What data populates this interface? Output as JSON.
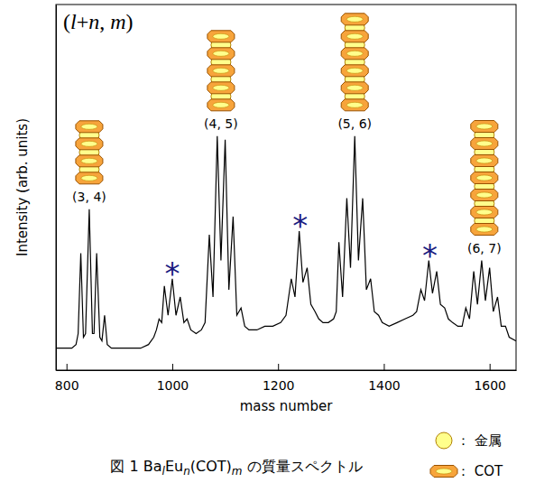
{
  "chart_data": {
    "type": "line",
    "x_label": "mass number",
    "y_label": "Intensity (arb. units)",
    "corner_label": "(l+n, m)",
    "caption": [
      "図 1 Ba",
      "l",
      "Eu",
      "n",
      "(COT)",
      "m",
      " の質量スペクトル"
    ],
    "color": "#000000",
    "xlim": [
      780,
      1650
    ],
    "xticks": [
      800,
      1000,
      1200,
      1400,
      1600
    ],
    "ylim": [
      0,
      100
    ],
    "tick_labels": "x",
    "x": [
      780,
      790,
      800,
      810,
      818,
      822,
      827,
      832,
      836,
      843,
      849,
      852,
      857,
      863,
      867,
      872,
      877,
      885,
      900,
      920,
      940,
      955,
      965,
      970,
      975,
      980,
      985,
      992,
      1000,
      1007,
      1015,
      1022,
      1028,
      1035,
      1045,
      1055,
      1062,
      1070,
      1077,
      1085,
      1092,
      1100,
      1107,
      1115,
      1122,
      1130,
      1137,
      1145,
      1160,
      1175,
      1190,
      1205,
      1215,
      1225,
      1232,
      1240,
      1247,
      1255,
      1262,
      1270,
      1277,
      1285,
      1295,
      1305,
      1310,
      1315,
      1322,
      1330,
      1337,
      1345,
      1352,
      1360,
      1367,
      1375,
      1382,
      1390,
      1397,
      1410,
      1425,
      1440,
      1455,
      1462,
      1470,
      1477,
      1485,
      1492,
      1500,
      1507,
      1515,
      1522,
      1530,
      1540,
      1548,
      1555,
      1562,
      1570,
      1577,
      1585,
      1592,
      1600,
      1607,
      1615,
      1622,
      1630,
      1637,
      1650
    ],
    "values": [
      6,
      6,
      6,
      6,
      7,
      10,
      32,
      9,
      10,
      44,
      10,
      10,
      32,
      9,
      8,
      15,
      7,
      6,
      6,
      6,
      6,
      7,
      9,
      11,
      14,
      13,
      23,
      15,
      25,
      15,
      20,
      13,
      14,
      11,
      10,
      11,
      13,
      37,
      20,
      64,
      30,
      63,
      22,
      42,
      15,
      17,
      12,
      11,
      11,
      12,
      12,
      13,
      15,
      25,
      20,
      38,
      24,
      28,
      18,
      16,
      14,
      13,
      13,
      14,
      16,
      35,
      20,
      47,
      28,
      64,
      30,
      47,
      22,
      25,
      16,
      15,
      13,
      12,
      13,
      14,
      15,
      16,
      22,
      19,
      30,
      21,
      27,
      18,
      17,
      14,
      13,
      12,
      12,
      17,
      14,
      27,
      18,
      30,
      19,
      28,
      16,
      20,
      12,
      12,
      9,
      8
    ],
    "annotations": [
      {
        "text": "(3, 4)",
        "x": 843,
        "metal": 3,
        "cot": 4
      },
      {
        "text": "(4, 5)",
        "x": 1092,
        "metal": 4,
        "cot": 5
      },
      {
        "text": "(5, 6)",
        "x": 1345,
        "metal": 5,
        "cot": 6
      },
      {
        "text": "(6, 7)",
        "x": 1590,
        "metal": 6,
        "cot": 7
      }
    ],
    "markers": [
      {
        "text": "*",
        "x": 1000,
        "color": "#1a1a80"
      },
      {
        "text": "*",
        "x": 1242,
        "color": "#1a1a80"
      },
      {
        "text": "*",
        "x": 1487,
        "color": "#1a1a80"
      }
    ],
    "symbols": [
      {
        "label": "： 金属",
        "marker": "circle",
        "color": "#ffff8c"
      },
      {
        "label": "： COT",
        "marker": "octagon",
        "color": "#f7a43b"
      }
    ]
  }
}
